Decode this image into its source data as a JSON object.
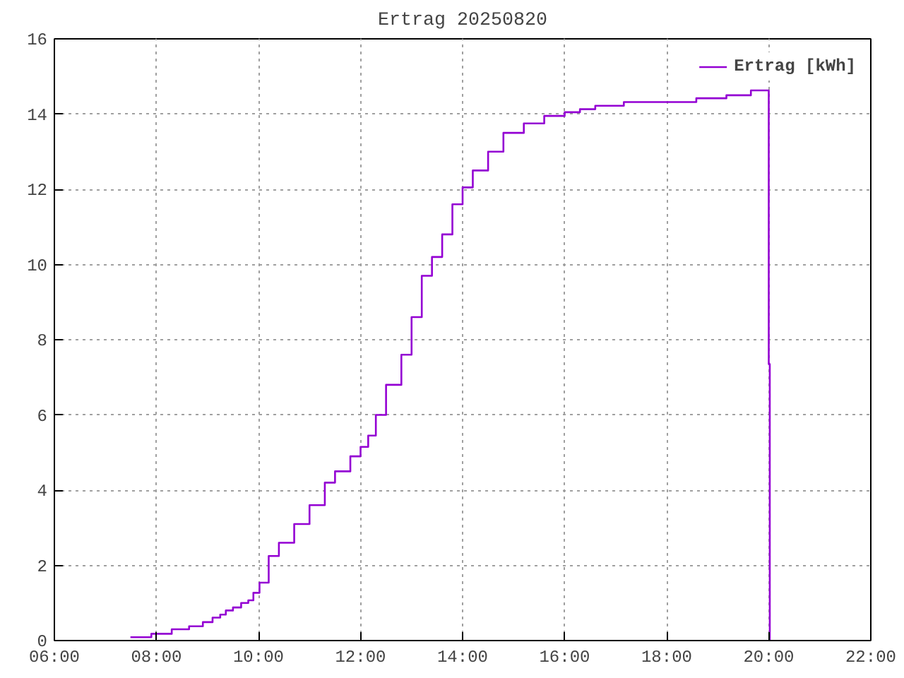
{
  "chart_data": {
    "type": "step",
    "title": "Ertrag 20250820",
    "x": [
      7.49,
      7.9,
      8.3,
      8.64,
      8.91,
      9.1,
      9.25,
      9.36,
      9.5,
      9.66,
      9.8,
      9.9,
      10.02,
      10.2,
      10.4,
      10.7,
      11.0,
      11.3,
      11.5,
      11.8,
      12.0,
      12.15,
      12.3,
      12.5,
      12.8,
      13.0,
      13.2,
      13.4,
      13.6,
      13.8,
      14.0,
      14.2,
      14.5,
      14.8,
      15.2,
      15.6,
      16.0,
      16.3,
      16.6,
      17.16,
      18.58,
      19.17,
      19.65,
      20.0,
      20.02
    ],
    "series": [
      {
        "name": "Ertrag [kWh]",
        "color": "#9400d3",
        "values": [
          0.09,
          0.18,
          0.3,
          0.38,
          0.49,
          0.61,
          0.69,
          0.8,
          0.88,
          1.0,
          1.07,
          1.27,
          1.54,
          2.25,
          2.6,
          3.1,
          3.6,
          4.2,
          4.5,
          4.9,
          5.15,
          5.45,
          6.0,
          6.8,
          7.6,
          8.6,
          9.7,
          10.2,
          10.8,
          11.6,
          12.05,
          12.5,
          13.0,
          13.5,
          13.75,
          13.95,
          14.05,
          14.13,
          14.22,
          14.32,
          14.42,
          14.5,
          14.63,
          7.35,
          0
        ]
      }
    ],
    "xlim": [
      6,
      22
    ],
    "ylim": [
      0,
      16
    ],
    "xticks": [
      {
        "value": 6,
        "label": "06:00"
      },
      {
        "value": 8,
        "label": "08:00"
      },
      {
        "value": 10,
        "label": "10:00"
      },
      {
        "value": 12,
        "label": "12:00"
      },
      {
        "value": 14,
        "label": "14:00"
      },
      {
        "value": 16,
        "label": "16:00"
      },
      {
        "value": 18,
        "label": "18:00"
      },
      {
        "value": 20,
        "label": "20:00"
      },
      {
        "value": 22,
        "label": "22:00"
      }
    ],
    "yticks": [
      0,
      2,
      4,
      6,
      8,
      10,
      12,
      14,
      16
    ],
    "grid": true,
    "legend": "top right",
    "line_style": "solid"
  }
}
